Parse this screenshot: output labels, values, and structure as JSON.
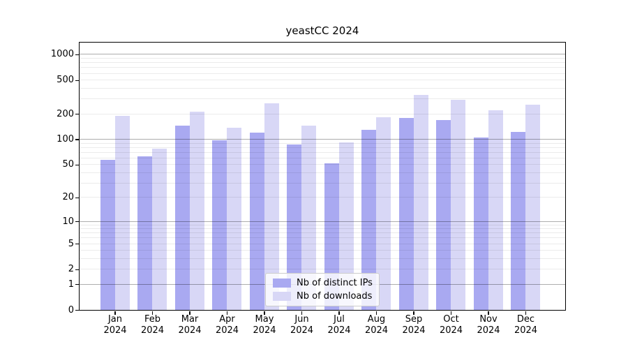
{
  "title": "yeastCC 2024",
  "chart_data": {
    "type": "bar",
    "title": "yeastCC 2024",
    "y_scale": "log10(1+y)",
    "grid": true,
    "legend_position": "bottom-center",
    "year": "2024",
    "categories": [
      "Jan",
      "Feb",
      "Mar",
      "Apr",
      "May",
      "Jun",
      "Jul",
      "Aug",
      "Sep",
      "Oct",
      "Nov",
      "Dec"
    ],
    "series": [
      {
        "name": "Nb of distinct IPs",
        "color": "#a9a9f1",
        "values": [
          57,
          63,
          146,
          97,
          120,
          87,
          52,
          129,
          177,
          168,
          105,
          123
        ]
      },
      {
        "name": "Nb of downloads",
        "color": "#d8d7f6",
        "values": [
          190,
          77,
          212,
          136,
          266,
          145,
          92,
          181,
          331,
          295,
          220,
          258
        ]
      }
    ],
    "yticks": [
      1000,
      500,
      200,
      100,
      50,
      20,
      10,
      5,
      2,
      1,
      0
    ],
    "ylim": [
      0,
      1500
    ],
    "xlabel": "",
    "ylabel": ""
  },
  "colors": {
    "background": "#ffffff",
    "bar_distinct_ips": "#a9a9f1",
    "bar_downloads": "#d8d7f6",
    "grid_major": "rgba(0,0,0,0.32)",
    "grid_minor": "rgba(0,0,0,0.08)",
    "spine": "#000000",
    "text": "#000000",
    "legend_border": "#cccccc"
  }
}
